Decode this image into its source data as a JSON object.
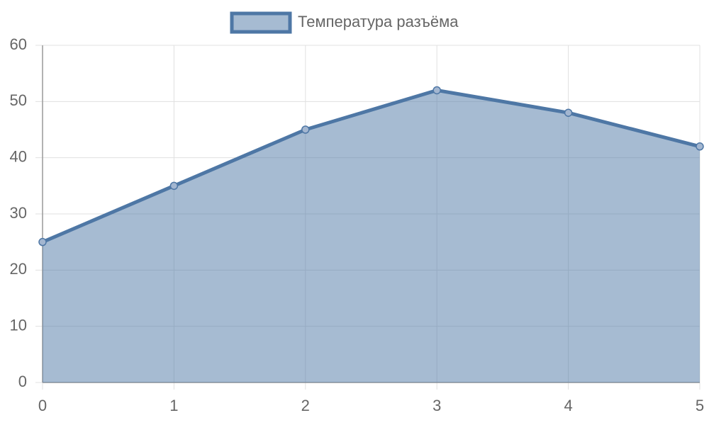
{
  "chart_data": {
    "type": "area",
    "x": [
      0,
      1,
      2,
      3,
      4,
      5
    ],
    "series": [
      {
        "name": "Температура разъёма",
        "color": "#4e77a5",
        "values": [
          25,
          35,
          45,
          52,
          48,
          42
        ]
      }
    ],
    "xlim": [
      0,
      5
    ],
    "xticks": [
      0,
      1,
      2,
      3,
      4,
      5
    ],
    "ylim": [
      0,
      60
    ],
    "yticks": [
      0,
      10,
      20,
      30,
      40,
      50,
      60
    ],
    "grid": true,
    "legend": "top"
  }
}
